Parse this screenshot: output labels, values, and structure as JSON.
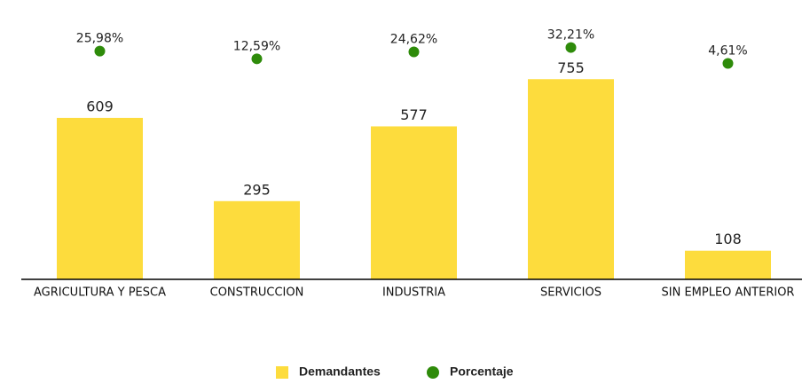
{
  "chart_data": {
    "type": "bar",
    "categories": [
      "AGRICULTURA Y PESCA",
      "CONSTRUCCION",
      "INDUSTRIA",
      "SERVICIOS",
      "SIN EMPLEO ANTERIOR"
    ],
    "series": [
      {
        "name": "Demandantes",
        "color": "#fddc3d",
        "values": [
          609,
          295,
          577,
          755,
          108
        ]
      },
      {
        "name": "Porcentaje",
        "color": "#2e8b0a",
        "axis": "y2",
        "values": [
          25.98,
          12.59,
          24.62,
          32.21,
          4.61
        ],
        "value_labels": [
          "25,98%",
          "12,59%",
          "24,62%",
          "32,21%",
          "4,61%"
        ]
      }
    ],
    "ylim": [
      0,
      1000
    ],
    "y2lim": [
      -370,
      90
    ],
    "legend": "bottom"
  }
}
